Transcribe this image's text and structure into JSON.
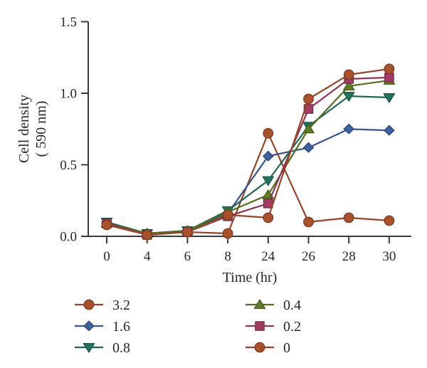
{
  "figure": {
    "background": "#ffffff",
    "text_color": "#262626",
    "axis_color": "#3b3b3b"
  },
  "chart_data": {
    "type": "line",
    "title": "",
    "xlabel": "Time (hr)",
    "ylabel_line1": "Cell density",
    "ylabel_line2": "( 590 nm)",
    "categories": [
      "0",
      "4",
      "6",
      "8",
      "24",
      "26",
      "28",
      "30"
    ],
    "y_ticks": [
      "0.0",
      "0.5",
      "1.0",
      "1.5"
    ],
    "ylim": [
      0,
      1.5
    ],
    "grid": false,
    "legend_position": "bottom-two-columns",
    "series": [
      {
        "name": "3.2",
        "marker": "circle",
        "color": "#a9502c",
        "values": [
          0.09,
          0.01,
          0.03,
          0.02,
          0.72,
          0.1,
          0.13,
          0.11
        ]
      },
      {
        "name": "1.6",
        "marker": "diamond",
        "color": "#3e5f9e",
        "values": [
          0.09,
          0.02,
          0.04,
          0.16,
          0.56,
          0.62,
          0.75,
          0.74
        ]
      },
      {
        "name": "0.8",
        "marker": "triangle-down",
        "color": "#23735f",
        "values": [
          0.1,
          0.02,
          0.04,
          0.18,
          0.39,
          0.77,
          0.98,
          0.97
        ]
      },
      {
        "name": "0.4",
        "marker": "triangle-up",
        "color": "#5e7d26",
        "values": [
          0.09,
          0.02,
          0.04,
          0.17,
          0.29,
          0.75,
          1.05,
          1.09
        ]
      },
      {
        "name": "0.2",
        "marker": "square",
        "color": "#a23c63",
        "values": [
          0.09,
          0.01,
          0.03,
          0.14,
          0.23,
          0.89,
          1.1,
          1.11
        ]
      },
      {
        "name": "0",
        "marker": "circle",
        "color": "#a9502c",
        "values": [
          0.08,
          0.01,
          0.03,
          0.15,
          0.13,
          0.96,
          1.13,
          1.17
        ]
      }
    ]
  }
}
